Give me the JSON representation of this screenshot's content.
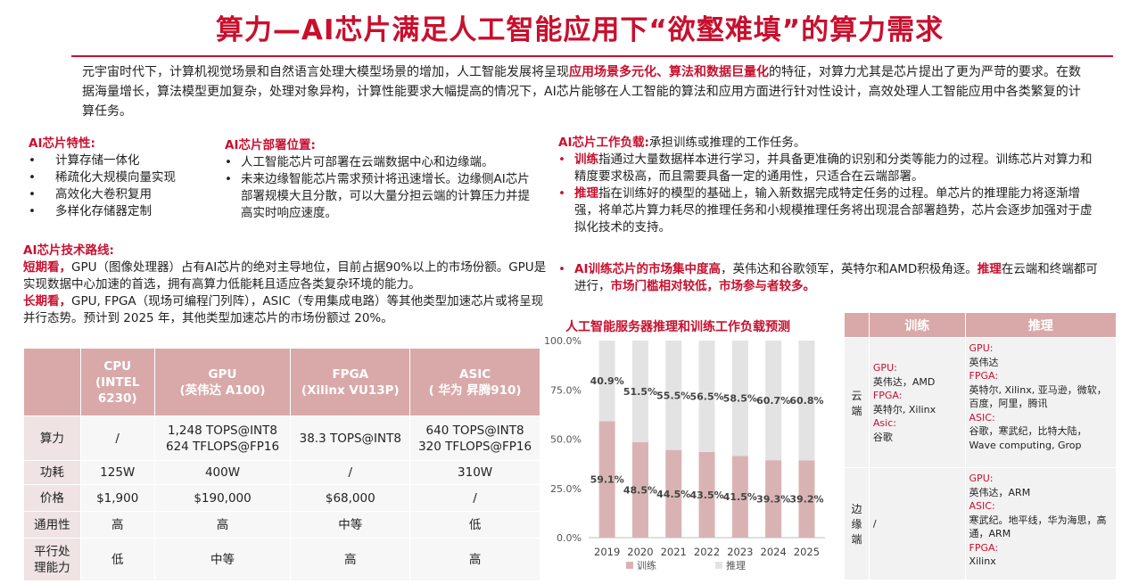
{
  "title": "算力—AI芯片满足人工智能应用下“欲壑难填”的算力需求",
  "intro": {
    "p1": "元宇宙时代下，计算机视觉场景和自然语言处理大模型场景的增加，人工智能发展将呈现",
    "p1_hl": "应用场景多元化、算法和数据巨量化",
    "p2": "的特征，对算力尤其是芯片提出了更为严苛的要求。在数据海量增长，算法模型更加复杂，处理对象异构，计算性能要求大幅提高的情况下，AI芯片能够在人工智能的算法和应用方面进行针对性设计，高效处理人工智能应用中各类繁复的计算任务。"
  },
  "features": {
    "heading": "AI芯片特性:",
    "items": [
      "计算存储一体化",
      "稀疏化大规模向量实现",
      "高效化大卷积复用",
      "多样化存储器定制"
    ]
  },
  "deployment": {
    "heading": "AI芯片部署位置:",
    "items": [
      "人工智能芯片可部署在云端数据中心和边缘端。",
      "未来边缘智能芯片需求预计将迅速增长。边缘侧AI芯片部署规模大且分散，可以大量分担云端的计算压力并提高实时响应速度。"
    ]
  },
  "workload": {
    "heading": "AI芯片工作负载:",
    "heading_text": "承担训练或推理的工作任务。",
    "items": [
      {
        "hl": "训练",
        "text": "指通过大量数据样本进行学习，并具备更准确的识别和分类等能力的过程。训练芯片对算力和精度要求极高，而且需要具备一定的通用性，只适合在云端部署。"
      },
      {
        "hl": "推理",
        "text": "指在训练好的模型的基础上，输入新数据完成特定任务的过程。单芯片的推理能力将逐渐增强，将单芯片算力耗尽的推理任务和小规模推理任务将出现混合部署趋势，芯片会逐步加强对于虚拟化技术的支持。"
      }
    ]
  },
  "market": {
    "hl1": "AI训练芯片的市场集中度高",
    "t1": "，英伟达和谷歌领军，英特尔和AMD积极角逐。",
    "hl2": "推理",
    "t2": "在云端和终端都可进行，",
    "hl3": "市场门槛相对较低，市场参与者较多。"
  },
  "roadmap": {
    "heading": "AI芯片技术路线:",
    "short_hl": "短期看，",
    "short_text": "GPU（图像处理器）占有AI芯片的绝对主导地位，目前占据90%以上的市场份额。GPU是实现数据中心加速的首选，拥有高算力低能耗且适应各类复杂环境的能力。",
    "long_hl": "长期看，",
    "long_text": "GPU, FPGA（现场可编程门列阵），ASIC（专用集成电路）等其他类型加速芯片或将呈现并行态势。预计到 2025 年，其他类型加速芯片的市场份额过 20%。"
  },
  "spec_table": {
    "headers": [
      "CPU\n(INTEL\n6230)",
      "GPU\n(英伟达 A100)",
      "FPGA\n(Xilinx VU13P)",
      "ASIC\n( 华为 昇腾910)"
    ],
    "rows": [
      {
        "label": "算力",
        "cells": [
          "/",
          "1,248 TOPS@INT8\n624 TFLOPS@FP16",
          "38.3 TOPS@INT8",
          "640 TOPS@INT8\n320 TFLOPS@FP16"
        ]
      },
      {
        "label": "功耗",
        "cells": [
          "125W",
          "400W",
          "/",
          "310W"
        ]
      },
      {
        "label": "价格",
        "cells": [
          "$1,900",
          "$190,000",
          "$68,000",
          "/"
        ]
      },
      {
        "label": "通用性",
        "cells": [
          "高",
          "高",
          "中等",
          "低"
        ]
      },
      {
        "label": "平行处\n理能力",
        "cells": [
          "低",
          "中等",
          "高",
          "高"
        ]
      }
    ]
  },
  "chart_title": "人工智能服务器推理和训练工作负载预测",
  "chart_data": {
    "type": "bar",
    "stacked": true,
    "title": "人工智能服务器推理和训练工作负载预测",
    "categories": [
      "2019",
      "2020",
      "2021",
      "2022",
      "2023",
      "2024",
      "2025"
    ],
    "series": [
      {
        "name": "训练",
        "values": [
          59.1,
          48.5,
          44.5,
          43.5,
          41.5,
          39.3,
          39.2
        ],
        "labels": [
          "59.1%",
          "48.5%",
          "44.5%",
          "43.5%",
          "41.5%",
          "39.3%",
          "39.2%"
        ],
        "color": "#d9b3b3"
      },
      {
        "name": "推理",
        "values": [
          40.9,
          51.5,
          55.5,
          56.5,
          58.5,
          60.7,
          60.8
        ],
        "labels": [
          "40.9%",
          "51.5%",
          "55.5%",
          "56.5%",
          "58.5%",
          "60.7%",
          "60.8%"
        ],
        "color": "#e3e3e3"
      }
    ],
    "ylim": [
      0,
      100
    ],
    "yticks": [
      "0.0%",
      "25.0%",
      "50.0%",
      "75.0%",
      "100.0%"
    ],
    "legend": "bottom",
    "grid": false
  },
  "deploy_table": {
    "headers": [
      "训练",
      "推理"
    ],
    "rows": [
      {
        "label": "云\n端",
        "train": [
          {
            "k": "GPU:",
            "v": "英伟达，AMD"
          },
          {
            "k": "FPGA:",
            "v": "英特尔, Xilinx"
          },
          {
            "k": "Asic:",
            "v": "谷歌"
          }
        ],
        "infer": [
          {
            "k": "GPU:",
            "v": "英伟达"
          },
          {
            "k": "FPGA:",
            "v": "英特尔, Xilinx, 亚马逊，微软，百度，阿里，腾讯"
          },
          {
            "k": "ASIC:",
            "v": "谷歌，寒武纪，比特大陆，Wave computing, Grop"
          }
        ]
      },
      {
        "label": "边\n缘\n端",
        "train_text": "/",
        "infer": [
          {
            "k": "GPU:",
            "v": "英伟达，ARM"
          },
          {
            "k": "ASIC:",
            "v": "寒武纪。地平线，华为海思，高通，ARM"
          },
          {
            "k": "FPGA:",
            "v": "Xilinx"
          }
        ]
      }
    ]
  }
}
